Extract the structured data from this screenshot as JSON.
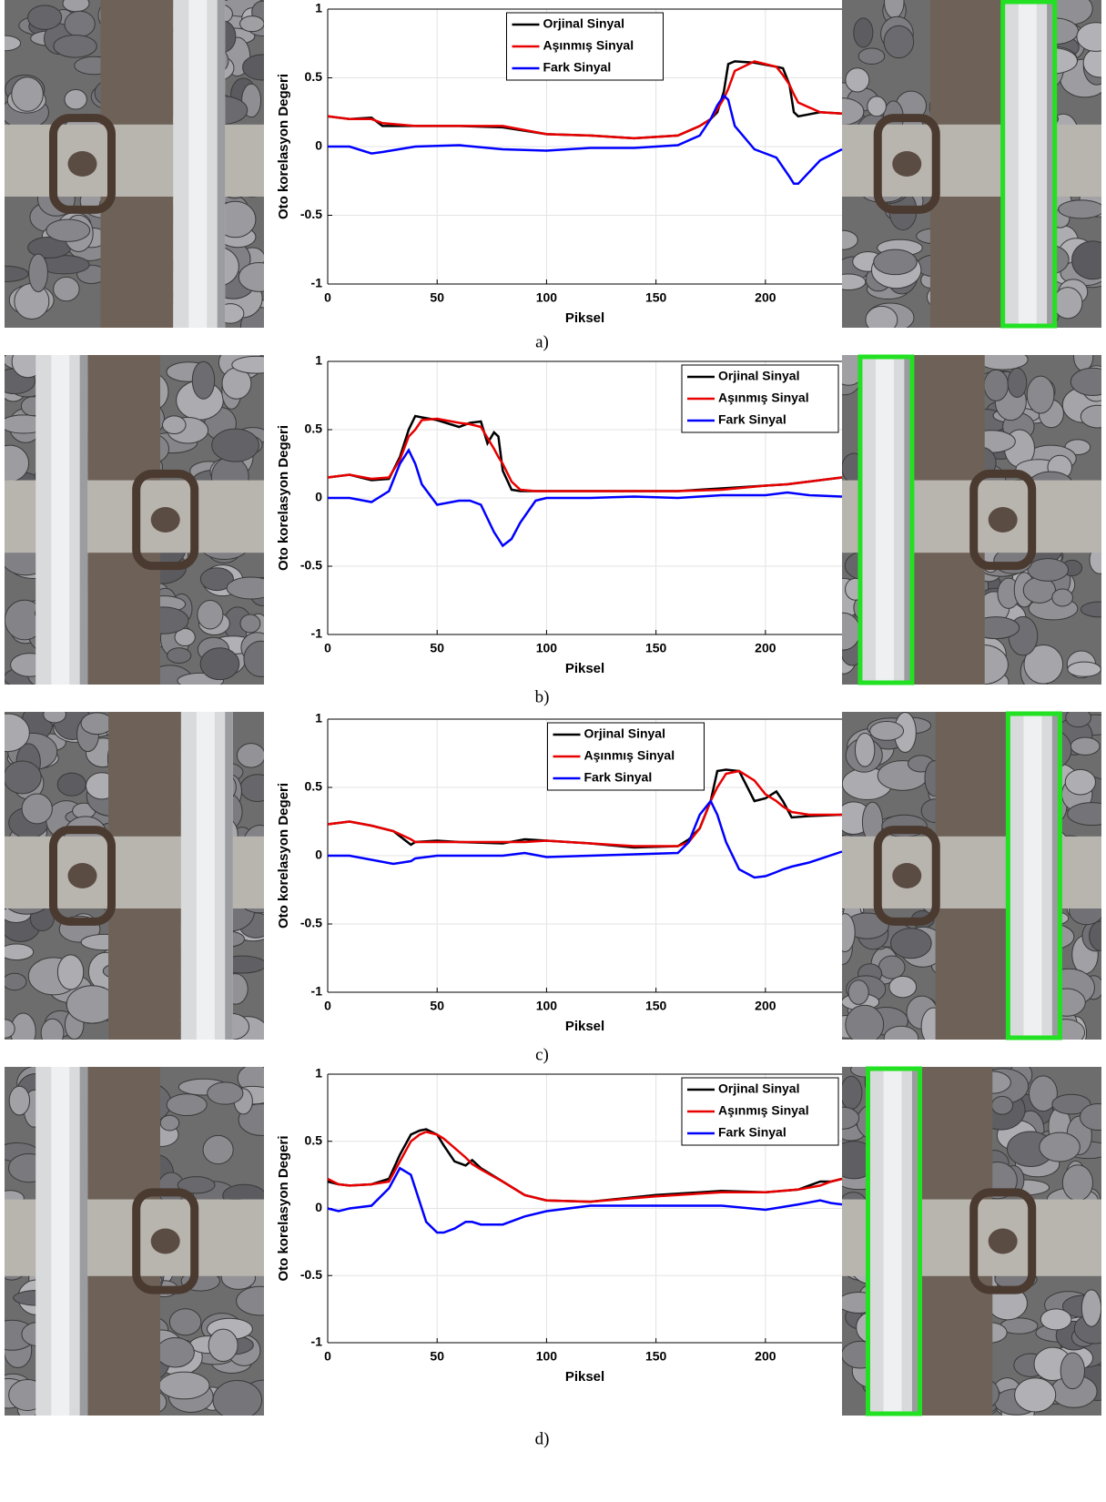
{
  "chart_data": [
    {
      "type": "line",
      "caption": "a)",
      "xlabel": "Piksel",
      "ylabel": "Oto korelasyon Degeri",
      "xlim": [
        0,
        235
      ],
      "ylim": [
        -1,
        1
      ],
      "xticks": [
        0,
        50,
        100,
        150,
        200
      ],
      "yticks": [
        -1,
        -0.5,
        0,
        0.5,
        1
      ],
      "grid": true,
      "legend_position": "upper center",
      "x": [
        0,
        10,
        20,
        25,
        40,
        60,
        80,
        100,
        120,
        140,
        160,
        170,
        175,
        178,
        181,
        183,
        186,
        195,
        205,
        208,
        211,
        213,
        215,
        225,
        235
      ],
      "series": [
        {
          "name": "Orjinal Sinyal",
          "color": "#000000",
          "values": [
            0.22,
            0.2,
            0.21,
            0.15,
            0.15,
            0.15,
            0.14,
            0.09,
            0.08,
            0.06,
            0.08,
            0.15,
            0.2,
            0.25,
            0.4,
            0.6,
            0.62,
            0.61,
            0.58,
            0.57,
            0.45,
            0.25,
            0.22,
            0.25,
            0.24
          ]
        },
        {
          "name": "Aşınmış Sinyal",
          "color": "#e80000",
          "values": [
            0.22,
            0.2,
            0.2,
            0.17,
            0.15,
            0.15,
            0.15,
            0.09,
            0.08,
            0.06,
            0.08,
            0.15,
            0.2,
            0.27,
            0.35,
            0.42,
            0.55,
            0.62,
            0.58,
            0.52,
            0.45,
            0.38,
            0.32,
            0.25,
            0.24
          ]
        },
        {
          "name": "Fark Sinyal",
          "color": "#0000ff",
          "values": [
            0,
            0,
            -0.05,
            -0.04,
            0,
            0.01,
            -0.02,
            -0.03,
            -0.01,
            -0.01,
            0.01,
            0.08,
            0.2,
            0.3,
            0.37,
            0.34,
            0.15,
            -0.02,
            -0.08,
            -0.15,
            -0.22,
            -0.27,
            -0.27,
            -0.1,
            -0.02
          ]
        }
      ]
    },
    {
      "type": "line",
      "caption": "b)",
      "xlabel": "Piksel",
      "ylabel": "Oto korelasyon Degeri",
      "xlim": [
        0,
        235
      ],
      "ylim": [
        -1,
        1
      ],
      "xticks": [
        0,
        50,
        100,
        150,
        200
      ],
      "yticks": [
        -1,
        -0.5,
        0,
        0.5,
        1
      ],
      "grid": true,
      "legend_position": "upper right",
      "x": [
        0,
        10,
        20,
        28,
        33,
        37,
        40,
        43,
        50,
        60,
        65,
        70,
        73,
        76,
        78,
        80,
        84,
        88,
        95,
        100,
        120,
        140,
        160,
        180,
        200,
        210,
        220,
        235
      ],
      "series": [
        {
          "name": "Orjinal Sinyal",
          "color": "#000000",
          "values": [
            0.15,
            0.17,
            0.13,
            0.14,
            0.3,
            0.5,
            0.6,
            0.59,
            0.57,
            0.52,
            0.55,
            0.56,
            0.4,
            0.48,
            0.45,
            0.2,
            0.06,
            0.05,
            0.05,
            0.05,
            0.05,
            0.05,
            0.05,
            0.07,
            0.09,
            0.1,
            0.12,
            0.15
          ]
        },
        {
          "name": "Aşınmış Sinyal",
          "color": "#e80000",
          "values": [
            0.15,
            0.17,
            0.14,
            0.15,
            0.28,
            0.45,
            0.5,
            0.57,
            0.58,
            0.55,
            0.54,
            0.52,
            0.44,
            0.36,
            0.3,
            0.25,
            0.12,
            0.06,
            0.05,
            0.05,
            0.05,
            0.05,
            0.05,
            0.06,
            0.09,
            0.1,
            0.12,
            0.15
          ]
        },
        {
          "name": "Fark Sinyal",
          "color": "#0000ff",
          "values": [
            0,
            0,
            -0.03,
            0.05,
            0.25,
            0.35,
            0.25,
            0.1,
            -0.05,
            -0.02,
            -0.02,
            -0.05,
            -0.15,
            -0.25,
            -0.3,
            -0.35,
            -0.3,
            -0.18,
            -0.02,
            0,
            0,
            0.01,
            0,
            0.02,
            0.02,
            0.04,
            0.02,
            0.01
          ]
        }
      ]
    },
    {
      "type": "line",
      "caption": "c)",
      "xlabel": "Piksel",
      "ylabel": "Oto korelasyon Degeri",
      "xlim": [
        0,
        235
      ],
      "ylim": [
        -1,
        1
      ],
      "xticks": [
        0,
        50,
        100,
        150,
        200
      ],
      "yticks": [
        -1,
        -0.5,
        0,
        0.5,
        1
      ],
      "grid": true,
      "legend_position": "upper center",
      "x": [
        0,
        10,
        20,
        30,
        38,
        40,
        50,
        60,
        80,
        90,
        100,
        120,
        140,
        160,
        165,
        170,
        175,
        178,
        182,
        188,
        195,
        200,
        205,
        208,
        212,
        220,
        235
      ],
      "series": [
        {
          "name": "Orjinal Sinyal",
          "color": "#000000",
          "values": [
            0.23,
            0.25,
            0.22,
            0.18,
            0.08,
            0.1,
            0.11,
            0.1,
            0.09,
            0.12,
            0.11,
            0.09,
            0.06,
            0.07,
            0.12,
            0.2,
            0.4,
            0.62,
            0.63,
            0.62,
            0.4,
            0.42,
            0.47,
            0.4,
            0.28,
            0.29,
            0.3
          ]
        },
        {
          "name": "Aşınmış Sinyal",
          "color": "#e80000",
          "values": [
            0.23,
            0.25,
            0.22,
            0.18,
            0.12,
            0.1,
            0.1,
            0.1,
            0.1,
            0.1,
            0.11,
            0.09,
            0.07,
            0.07,
            0.1,
            0.2,
            0.4,
            0.5,
            0.6,
            0.62,
            0.55,
            0.45,
            0.4,
            0.36,
            0.32,
            0.3,
            0.3
          ]
        },
        {
          "name": "Fark Sinyal",
          "color": "#0000ff",
          "values": [
            0,
            0,
            -0.03,
            -0.06,
            -0.04,
            -0.02,
            0,
            0,
            0,
            0.02,
            -0.01,
            0,
            0.01,
            0.02,
            0.1,
            0.3,
            0.4,
            0.3,
            0.1,
            -0.1,
            -0.16,
            -0.15,
            -0.12,
            -0.1,
            -0.08,
            -0.05,
            0.03
          ]
        }
      ]
    },
    {
      "type": "line",
      "caption": "d)",
      "xlabel": "Piksel",
      "ylabel": "Oto korelasyon Degeri",
      "xlim": [
        0,
        235
      ],
      "ylim": [
        -1,
        1
      ],
      "xticks": [
        0,
        50,
        100,
        150,
        200
      ],
      "yticks": [
        -1,
        -0.5,
        0,
        0.5,
        1
      ],
      "grid": true,
      "legend_position": "upper right",
      "x": [
        0,
        5,
        10,
        20,
        28,
        33,
        38,
        42,
        45,
        50,
        53,
        58,
        63,
        66,
        70,
        80,
        90,
        100,
        120,
        150,
        180,
        200,
        215,
        225,
        230,
        235
      ],
      "series": [
        {
          "name": "Orjinal Sinyal",
          "color": "#000000",
          "values": [
            0.2,
            0.18,
            0.17,
            0.18,
            0.22,
            0.4,
            0.55,
            0.58,
            0.59,
            0.55,
            0.47,
            0.35,
            0.32,
            0.36,
            0.3,
            0.2,
            0.1,
            0.06,
            0.05,
            0.1,
            0.13,
            0.12,
            0.14,
            0.2,
            0.2,
            0.22
          ]
        },
        {
          "name": "Aşınmış Sinyal",
          "color": "#e80000",
          "values": [
            0.22,
            0.18,
            0.17,
            0.18,
            0.2,
            0.35,
            0.5,
            0.55,
            0.57,
            0.55,
            0.52,
            0.45,
            0.38,
            0.33,
            0.29,
            0.2,
            0.1,
            0.06,
            0.05,
            0.09,
            0.12,
            0.12,
            0.14,
            0.17,
            0.2,
            0.22
          ]
        },
        {
          "name": "Fark Sinyal",
          "color": "#0000ff",
          "values": [
            0,
            -0.02,
            0,
            0.02,
            0.15,
            0.3,
            0.25,
            0.05,
            -0.1,
            -0.18,
            -0.18,
            -0.15,
            -0.1,
            -0.1,
            -0.12,
            -0.12,
            -0.06,
            -0.02,
            0.02,
            0.02,
            0.02,
            -0.01,
            0.03,
            0.06,
            0.04,
            0.03
          ]
        }
      ]
    }
  ]
}
